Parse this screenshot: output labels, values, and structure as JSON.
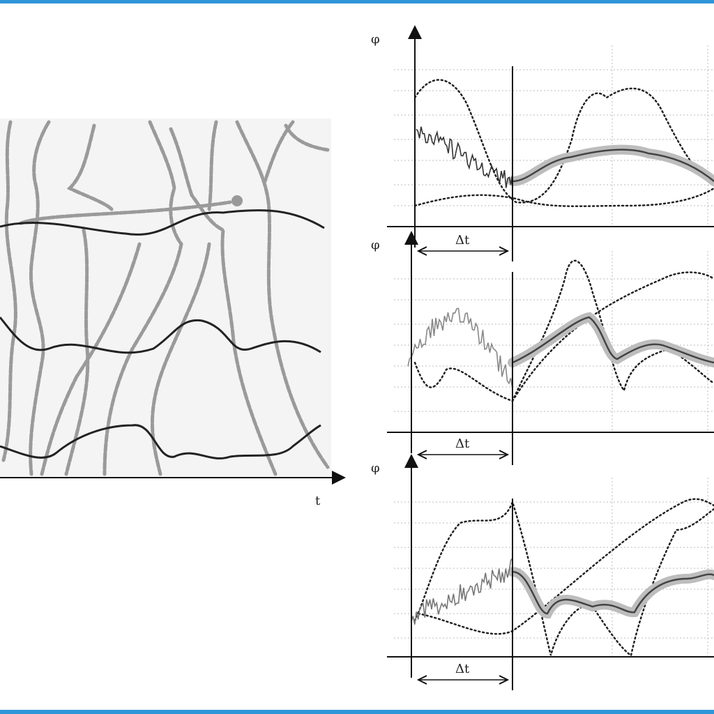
{
  "left_panel": {
    "x_axis_label": "t"
  },
  "right_panels": [
    {
      "y_axis_label": "φ",
      "interval_label": "Δt"
    },
    {
      "y_axis_label": "φ",
      "interval_label": "Δt"
    },
    {
      "y_axis_label": "φ",
      "interval_label": "Δt"
    }
  ]
}
